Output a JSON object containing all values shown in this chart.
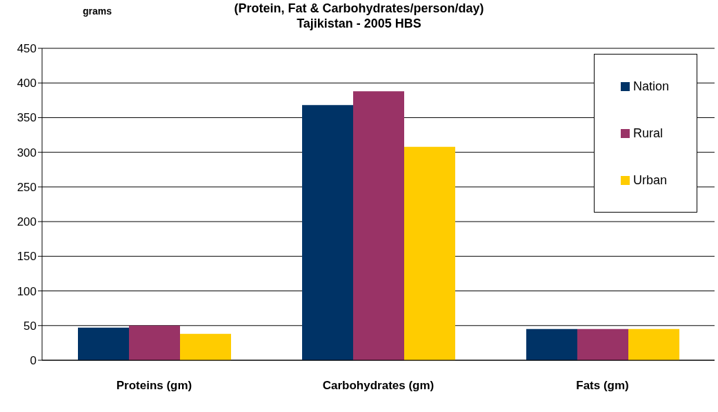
{
  "chart_data": {
    "type": "bar",
    "title": "(Protein, Fat & Carbohydrates/person/day)",
    "subtitle": "Tajikistan - 2005 HBS",
    "ylabel": "grams",
    "categories": [
      "Proteins (gm)",
      "Carbohydrates (gm)",
      "Fats (gm)"
    ],
    "series": [
      {
        "name": "Nation",
        "color": "#003366",
        "values": [
          47,
          368,
          45
        ]
      },
      {
        "name": "Rural",
        "color": "#993366",
        "values": [
          50,
          388,
          45
        ]
      },
      {
        "name": "Urban",
        "color": "#ffcc00",
        "values": [
          38,
          308,
          45
        ]
      }
    ],
    "ylim": [
      0,
      450
    ],
    "yticks": [
      0,
      50,
      100,
      150,
      200,
      250,
      300,
      350,
      400,
      450
    ],
    "grid": "y",
    "legend": "top right"
  }
}
